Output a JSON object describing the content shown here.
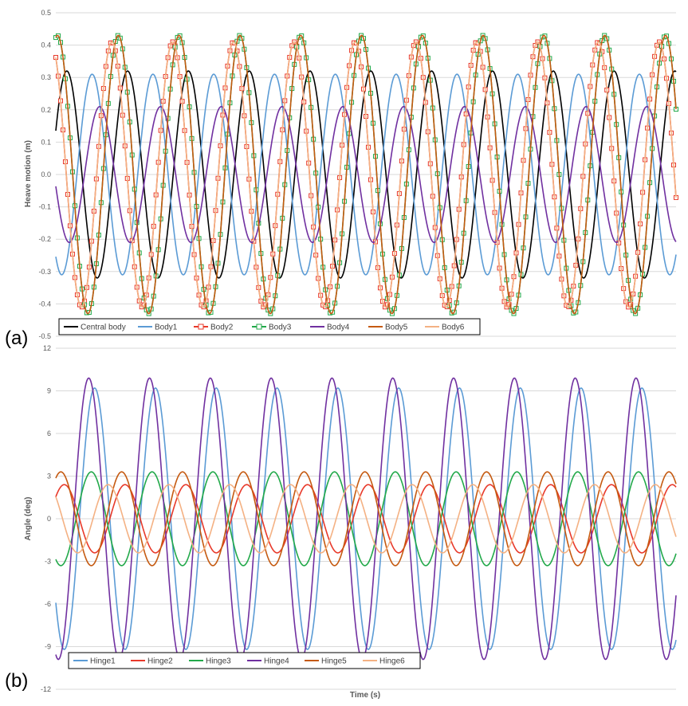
{
  "chart_data": [
    {
      "type": "line",
      "panel_label": "(a)",
      "title": "",
      "xlabel": "",
      "ylabel": "Heave motion (m)",
      "ylim": [
        -0.5,
        0.5
      ],
      "yticks": [
        "0.5",
        "0.4",
        "0.3",
        "0.2",
        "0.1",
        "0.0",
        "-0.1",
        "-0.2",
        "-0.3",
        "-0.4",
        "-0.5"
      ],
      "ytick_values": [
        0.5,
        0.4,
        0.3,
        0.2,
        0.1,
        0.0,
        -0.1,
        -0.2,
        -0.3,
        -0.4,
        -0.5
      ],
      "x_range_periods": [
        0,
        10.2
      ],
      "grid": true,
      "legend_position": "bottom-left",
      "series": [
        {
          "name": "Central body",
          "color": "#000000",
          "amplitude": 0.32,
          "phase_deg": 25,
          "marker": "none"
        },
        {
          "name": "Body1",
          "color": "#5b9bd5",
          "amplitude": 0.31,
          "phase_deg": 235,
          "marker": "none"
        },
        {
          "name": "Body2",
          "color": "#e8392a",
          "amplitude": 0.41,
          "phase_deg": 118,
          "marker": "square"
        },
        {
          "name": "Body3",
          "color": "#22a94a",
          "amplitude": 0.43,
          "phase_deg": 80,
          "marker": "square"
        },
        {
          "name": "Body4",
          "color": "#7030a0",
          "amplitude": 0.21,
          "phase_deg": 190,
          "marker": "none"
        },
        {
          "name": "Body5",
          "color": "#c55a11",
          "amplitude": 0.43,
          "phase_deg": 80,
          "marker": "none"
        },
        {
          "name": "Body6",
          "color": "#f4b183",
          "amplitude": 0.41,
          "phase_deg": 118,
          "marker": "none"
        }
      ]
    },
    {
      "type": "line",
      "panel_label": "(b)",
      "title": "",
      "xlabel": "Time (s)",
      "ylabel": "Angle (deg)",
      "ylim": [
        -12,
        12
      ],
      "yticks": [
        "12",
        "9",
        "6",
        "3",
        "0",
        "-3",
        "-6",
        "-9",
        "-12"
      ],
      "ytick_values": [
        12,
        9,
        6,
        3,
        0,
        -3,
        -6,
        -9,
        -12
      ],
      "x_range_periods": [
        0,
        10.2
      ],
      "grid": true,
      "legend_position": "bottom-left",
      "series": [
        {
          "name": "Hinge1",
          "color": "#5b9bd5",
          "amplitude": 9.2,
          "phase_deg": 220,
          "marker": "none"
        },
        {
          "name": "Hinge2",
          "color": "#e8392a",
          "amplitude": 2.4,
          "phase_deg": 40,
          "marker": "none"
        },
        {
          "name": "Hinge3",
          "color": "#22a94a",
          "amplitude": 3.3,
          "phase_deg": 240,
          "marker": "none"
        },
        {
          "name": "Hinge4",
          "color": "#7030a0",
          "amplitude": 9.9,
          "phase_deg": 255,
          "marker": "none"
        },
        {
          "name": "Hinge5",
          "color": "#c55a11",
          "amplitude": 3.3,
          "phase_deg": 60,
          "marker": "none"
        },
        {
          "name": "Hinge6",
          "color": "#f4b183",
          "amplitude": 2.4,
          "phase_deg": 140,
          "marker": "none"
        }
      ]
    }
  ]
}
